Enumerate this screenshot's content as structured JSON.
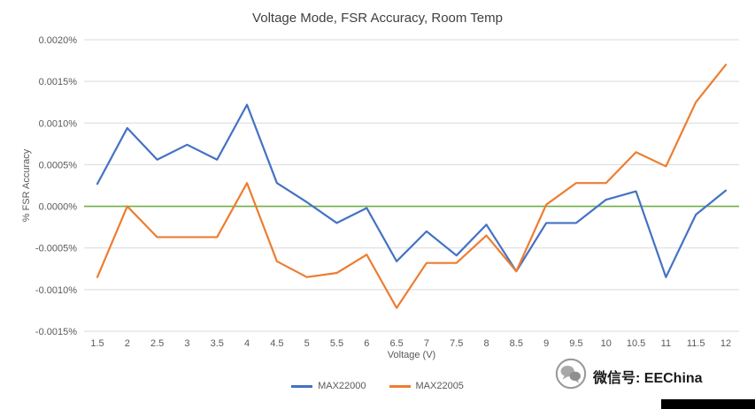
{
  "chart_data": {
    "type": "line",
    "title": "Voltage Mode, FSR Accuracy, Room Temp",
    "xlabel": "Voltage (V)",
    "ylabel": "% FSR Accuracy",
    "categories": [
      "1.5",
      "2",
      "2.5",
      "3",
      "3.5",
      "4",
      "4.5",
      "5",
      "5.5",
      "6",
      "6.5",
      "7",
      "7.5",
      "8",
      "8.5",
      "9",
      "9.5",
      "10",
      "10.5",
      "11",
      "11.5",
      "12"
    ],
    "series": [
      {
        "name": "MAX22000",
        "color": "#4472C4",
        "values": [
          0.00027,
          0.00094,
          0.00056,
          0.00074,
          0.00056,
          0.00122,
          0.00028,
          5e-05,
          -0.0002,
          -2e-05,
          -0.00066,
          -0.0003,
          -0.00059,
          -0.00022,
          -0.00078,
          -0.0002,
          -0.0002,
          8e-05,
          0.00018,
          -0.00085,
          -0.0001,
          0.00019
        ]
      },
      {
        "name": "MAX22005",
        "color": "#ED7D31",
        "values": [
          -0.00085,
          0.0,
          -0.00037,
          -0.00037,
          -0.00037,
          0.00028,
          -0.00066,
          -0.00085,
          -0.0008,
          -0.00058,
          -0.00122,
          -0.00068,
          -0.00068,
          -0.00035,
          -0.00078,
          2e-05,
          0.00028,
          0.00028,
          0.00065,
          0.00048,
          0.00125,
          0.0017
        ]
      }
    ],
    "ylim": [
      -0.0015,
      0.002
    ],
    "yticks": [
      0.002,
      0.0015,
      0.001,
      0.0005,
      0.0,
      -0.0005,
      -0.001,
      -0.0015
    ],
    "ytick_labels": [
      "0.0020%",
      "0.0015%",
      "0.0010%",
      "0.0005%",
      "0.0000%",
      "-0.0005%",
      "-0.0010%",
      "-0.0015%"
    ],
    "grid": true,
    "gridline_color": "#D9D9D9",
    "zero_line_color": "#70AD47",
    "tick_label_color": "#595959",
    "legend_position": "bottom"
  },
  "watermark": {
    "label": "微信号: EEChina"
  }
}
